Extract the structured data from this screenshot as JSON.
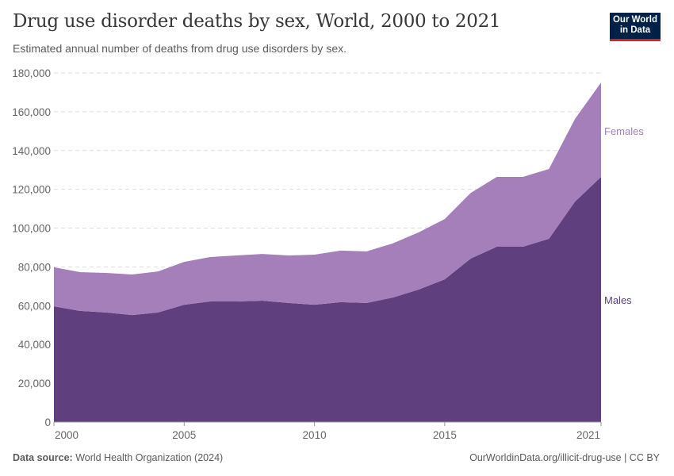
{
  "header": {
    "title": "Drug use disorder deaths by sex, World, 2000 to 2021",
    "subtitle": "Estimated annual number of deaths from drug use disorders by sex.",
    "logo_text": "Our World in Data"
  },
  "footer": {
    "source_label": "Data source:",
    "source": "World Health Organization (2024)",
    "link": "OurWorldinData.org/illicit-drug-use | CC BY"
  },
  "chart_data": {
    "type": "area",
    "stacked": true,
    "x": [
      2000,
      2001,
      2002,
      2003,
      2004,
      2005,
      2006,
      2007,
      2008,
      2009,
      2010,
      2011,
      2012,
      2013,
      2014,
      2015,
      2016,
      2017,
      2018,
      2019,
      2020,
      2021
    ],
    "xticks": [
      "2000",
      "2005",
      "2010",
      "2015",
      "2021"
    ],
    "yticks": [
      "0",
      "20,000",
      "40,000",
      "60,000",
      "80,000",
      "100,000",
      "120,000",
      "140,000",
      "160,000",
      "180,000"
    ],
    "ylim": [
      0,
      180000
    ],
    "grid": "horizontal dashed",
    "legend": "inline-right",
    "series": [
      {
        "name": "Males",
        "color": "#5f3f7e",
        "values": [
          59700,
          57300,
          56500,
          55200,
          56500,
          60500,
          62200,
          62200,
          62600,
          61400,
          60500,
          61800,
          61400,
          64200,
          68300,
          73600,
          84300,
          90400,
          90400,
          94500,
          113700,
          126400
        ]
      },
      {
        "name": "Females",
        "color": "#a47fba",
        "values": [
          20100,
          20000,
          20400,
          20900,
          21200,
          22100,
          22900,
          23700,
          24100,
          24500,
          25800,
          26600,
          26600,
          27900,
          29500,
          31100,
          33900,
          36000,
          36000,
          36000,
          42600,
          48700
        ]
      }
    ]
  }
}
